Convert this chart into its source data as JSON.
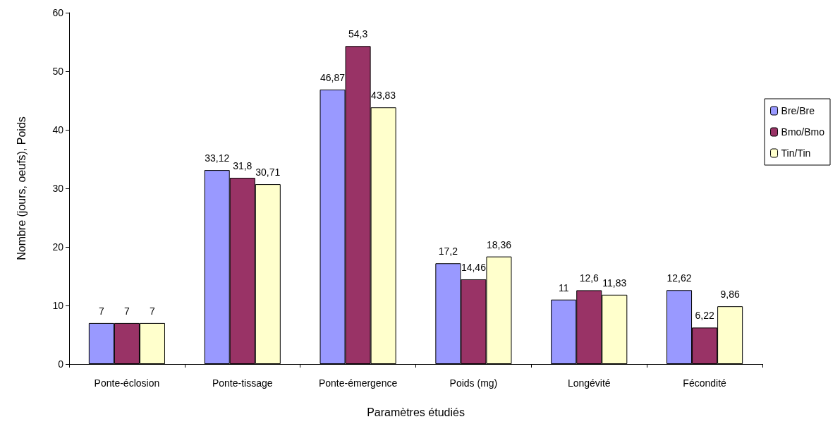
{
  "chart_data": {
    "type": "bar",
    "xlabel": "Paramètres étudiés",
    "ylabel": "Nombre (jours, oeufs), Poids",
    "categories": [
      "Ponte-éclosion",
      "Ponte-tissage",
      "Ponte-émergence",
      "Poids (mg)",
      "Longévité",
      "Fécondité"
    ],
    "series": [
      {
        "name": "Bre/Bre",
        "color": "#9999ff",
        "values": [
          7,
          33.12,
          46.87,
          17.2,
          11,
          12.62
        ],
        "value_labels": [
          "7",
          "33,12",
          "46,87",
          "17,2",
          "11",
          "12,62"
        ]
      },
      {
        "name": "Bmo/Bmo",
        "color": "#993366",
        "values": [
          7,
          31.8,
          54.3,
          14.46,
          12.6,
          6.22
        ],
        "value_labels": [
          "7",
          "31,8",
          "54,3",
          "14,46",
          "12,6",
          "6,22"
        ]
      },
      {
        "name": "Tin/Tin",
        "color": "#ffffcc",
        "values": [
          7,
          30.71,
          43.83,
          18.36,
          11.83,
          9.86
        ],
        "value_labels": [
          "7",
          "30,71",
          "43,83",
          "18,36",
          "11,83",
          "9,86"
        ]
      }
    ],
    "ylim": [
      0,
      60
    ],
    "yticks": [
      0,
      10,
      20,
      30,
      40,
      50,
      60
    ],
    "grid": false,
    "legend": "right"
  }
}
